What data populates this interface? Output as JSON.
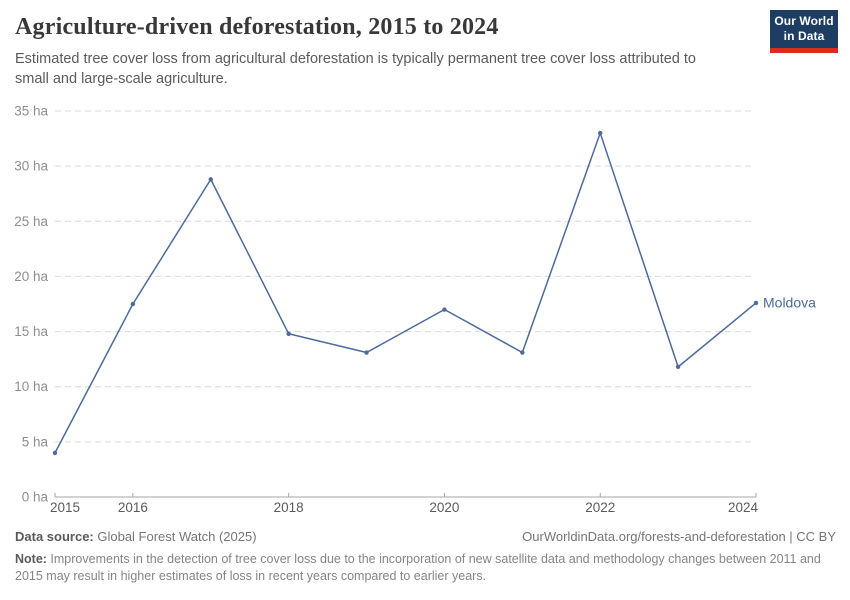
{
  "header": {
    "title": "Agriculture-driven deforestation, 2015 to 2024",
    "subtitle": "Estimated tree cover loss from agricultural deforestation is typically permanent tree cover loss attributed to small and large-scale agriculture.",
    "logo": {
      "line1": "Our World",
      "line2": "in Data",
      "bg_color": "#1d3d63",
      "accent_color": "#dc2a20"
    }
  },
  "chart_data": {
    "type": "line",
    "title": "Agriculture-driven deforestation, 2015 to 2024",
    "x": [
      2015,
      2016,
      2017,
      2018,
      2019,
      2020,
      2021,
      2022,
      2023,
      2024
    ],
    "series": [
      {
        "name": "Moldova",
        "color": "#4c6a9c",
        "values": [
          4,
          17.5,
          28.8,
          14.8,
          13.1,
          17,
          13.1,
          33,
          11.8,
          17.6
        ]
      }
    ],
    "xlabel": "",
    "ylabel": "",
    "unit": "ha",
    "ylim": [
      0,
      35
    ],
    "yticks": [
      0,
      5,
      10,
      15,
      20,
      25,
      30,
      35
    ],
    "ytick_suffix": " ha",
    "xticks": [
      2015,
      2016,
      2018,
      2020,
      2022,
      2024
    ],
    "grid": "horizontal-dashed",
    "legend_position": "end-of-line-label",
    "colors": {
      "grid": "#d9d9d9",
      "axis": "#a5a5a5",
      "ytick_label": "#8e8e8e",
      "xtick_label": "#5b5b5b"
    }
  },
  "footer": {
    "source_label": "Data source:",
    "source_value": " Global Forest Watch (2025)",
    "link": "OurWorldinData.org/forests-and-deforestation | CC BY",
    "note_label": "Note:",
    "note_value": " Improvements in the detection of tree cover loss due to the incorporation of new satellite data and methodology changes between 2011 and 2015 may result in higher estimates of loss in recent years compared to earlier years."
  }
}
